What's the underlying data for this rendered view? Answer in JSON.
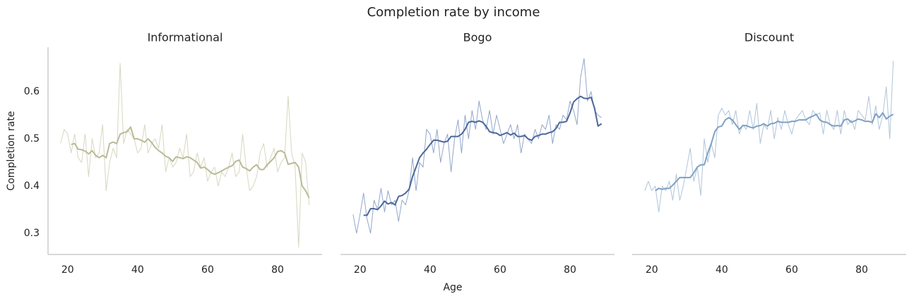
{
  "figure": {
    "title": "Completion rate by income",
    "x_label": "Age",
    "y_label": "Completion rate"
  },
  "chart_data": [
    {
      "type": "line",
      "title": "Informational",
      "x": [
        18,
        19,
        20,
        21,
        22,
        23,
        24,
        25,
        26,
        27,
        28,
        29,
        30,
        31,
        32,
        33,
        34,
        35,
        36,
        37,
        38,
        39,
        40,
        41,
        42,
        43,
        44,
        45,
        46,
        47,
        48,
        49,
        50,
        51,
        52,
        53,
        54,
        55,
        56,
        57,
        58,
        59,
        60,
        61,
        62,
        63,
        64,
        65,
        66,
        67,
        68,
        69,
        70,
        71,
        72,
        73,
        74,
        75,
        76,
        77,
        78,
        79,
        80,
        81,
        82,
        83,
        84,
        85,
        86,
        87,
        88,
        89
      ],
      "xlim": [
        14.4,
        92.7
      ],
      "ylim": [
        0.255,
        0.694
      ],
      "xticks": [
        20,
        40,
        60,
        80
      ],
      "yticks": [
        0.3,
        0.4,
        0.5,
        0.6
      ],
      "spines": [
        "left",
        "bottom"
      ],
      "series": [
        {
          "color": "#d6d7bf",
          "linewidth": 1,
          "values": [
            0.49,
            0.52,
            0.51,
            0.47,
            0.51,
            0.46,
            0.45,
            0.51,
            0.42,
            0.5,
            0.46,
            0.47,
            0.53,
            0.39,
            0.45,
            0.48,
            0.46,
            0.66,
            0.49,
            0.52,
            0.51,
            0.5,
            0.47,
            0.48,
            0.53,
            0.47,
            0.49,
            0.5,
            0.48,
            0.53,
            0.43,
            0.46,
            0.44,
            0.45,
            0.48,
            0.46,
            0.51,
            0.42,
            0.43,
            0.47,
            0.44,
            0.46,
            0.41,
            0.43,
            0.44,
            0.4,
            0.43,
            0.42,
            0.44,
            0.47,
            0.42,
            0.43,
            0.51,
            0.44,
            0.39,
            0.4,
            0.42,
            0.47,
            0.49,
            0.44,
            0.46,
            0.48,
            0.43,
            0.45,
            0.46,
            0.59,
            0.47,
            0.44,
            0.27,
            0.47,
            0.45,
            0.36
          ]
        },
        {
          "color": "#b9bb97",
          "linewidth": 2,
          "values": [
            null,
            null,
            null,
            0.488,
            0.49,
            0.478,
            0.477,
            0.474,
            0.468,
            0.475,
            0.465,
            0.46,
            0.465,
            0.46,
            0.49,
            0.493,
            0.49,
            0.51,
            0.513,
            0.515,
            0.525,
            0.5,
            0.5,
            0.497,
            0.493,
            0.5,
            0.492,
            0.482,
            0.475,
            0.47,
            0.463,
            0.46,
            0.452,
            0.462,
            0.46,
            0.458,
            0.462,
            0.46,
            0.455,
            0.45,
            0.438,
            0.44,
            0.435,
            0.428,
            0.425,
            0.428,
            0.432,
            0.436,
            0.44,
            0.443,
            0.452,
            0.455,
            0.44,
            0.437,
            0.432,
            0.44,
            0.445,
            0.435,
            0.435,
            0.445,
            0.452,
            0.46,
            0.473,
            0.475,
            0.47,
            0.446,
            0.448,
            0.45,
            0.44,
            0.4,
            0.39,
            0.375
          ]
        }
      ]
    },
    {
      "type": "line",
      "title": "Bogo",
      "x": [
        18,
        19,
        20,
        21,
        22,
        23,
        24,
        25,
        26,
        27,
        28,
        29,
        30,
        31,
        32,
        33,
        34,
        35,
        36,
        37,
        38,
        39,
        40,
        41,
        42,
        43,
        44,
        45,
        46,
        47,
        48,
        49,
        50,
        51,
        52,
        53,
        54,
        55,
        56,
        57,
        58,
        59,
        60,
        61,
        62,
        63,
        64,
        65,
        66,
        67,
        68,
        69,
        70,
        71,
        72,
        73,
        74,
        75,
        76,
        77,
        78,
        79,
        80,
        81,
        82,
        83,
        84,
        85,
        86,
        87,
        88,
        89
      ],
      "xlim": [
        14.4,
        92.7
      ],
      "ylim": [
        0.255,
        0.694
      ],
      "xticks": [
        20,
        40,
        60,
        80
      ],
      "spines": [
        "bottom"
      ],
      "series": [
        {
          "color": "#93a6cb",
          "linewidth": 1,
          "values": [
            0.34,
            0.3,
            0.34,
            0.385,
            0.33,
            0.3,
            0.37,
            0.35,
            0.395,
            0.345,
            0.39,
            0.36,
            0.37,
            0.325,
            0.37,
            0.36,
            0.39,
            0.46,
            0.39,
            0.45,
            0.44,
            0.52,
            0.51,
            0.47,
            0.52,
            0.45,
            0.49,
            0.51,
            0.43,
            0.5,
            0.54,
            0.47,
            0.55,
            0.5,
            0.56,
            0.52,
            0.58,
            0.54,
            0.52,
            0.56,
            0.51,
            0.55,
            0.52,
            0.49,
            0.51,
            0.53,
            0.5,
            0.53,
            0.47,
            0.51,
            0.5,
            0.49,
            0.52,
            0.5,
            0.53,
            0.52,
            0.55,
            0.49,
            0.53,
            0.52,
            0.55,
            0.54,
            0.58,
            0.56,
            0.53,
            0.63,
            0.67,
            0.58,
            0.6,
            0.56,
            0.55,
            0.545
          ]
        },
        {
          "color": "#4b6898",
          "linewidth": 2,
          "values": [
            null,
            null,
            null,
            0.338,
            0.338,
            0.352,
            0.352,
            0.35,
            0.358,
            0.368,
            0.362,
            0.365,
            0.36,
            0.378,
            0.38,
            0.385,
            0.393,
            0.42,
            0.44,
            0.46,
            0.47,
            0.478,
            0.488,
            0.497,
            0.497,
            0.495,
            0.493,
            0.495,
            0.505,
            0.505,
            0.505,
            0.51,
            0.52,
            0.535,
            0.537,
            0.535,
            0.538,
            0.535,
            0.527,
            0.515,
            0.513,
            0.512,
            0.507,
            0.51,
            0.513,
            0.508,
            0.512,
            0.505,
            0.505,
            0.507,
            0.5,
            0.497,
            0.505,
            0.507,
            0.51,
            0.51,
            0.513,
            0.515,
            0.522,
            0.535,
            0.535,
            0.537,
            0.555,
            0.578,
            0.585,
            0.59,
            0.586,
            0.585,
            0.588,
            0.565,
            0.527,
            0.532
          ]
        }
      ]
    },
    {
      "type": "line",
      "title": "Discount",
      "x": [
        18,
        19,
        20,
        21,
        22,
        23,
        24,
        25,
        26,
        27,
        28,
        29,
        30,
        31,
        32,
        33,
        34,
        35,
        36,
        37,
        38,
        39,
        40,
        41,
        42,
        43,
        44,
        45,
        46,
        47,
        48,
        49,
        50,
        51,
        52,
        53,
        54,
        55,
        56,
        57,
        58,
        59,
        60,
        61,
        62,
        63,
        64,
        65,
        66,
        67,
        68,
        69,
        70,
        71,
        72,
        73,
        74,
        75,
        76,
        77,
        78,
        79,
        80,
        81,
        82,
        83,
        84,
        85,
        86,
        87,
        88,
        89
      ],
      "xlim": [
        14.4,
        92.7
      ],
      "ylim": [
        0.255,
        0.694
      ],
      "xticks": [
        20,
        40,
        60,
        80
      ],
      "spines": [
        "bottom"
      ],
      "series": [
        {
          "color": "#b0c4da",
          "linewidth": 1,
          "values": [
            0.39,
            0.41,
            0.39,
            0.4,
            0.345,
            0.4,
            0.39,
            0.41,
            0.37,
            0.425,
            0.37,
            0.4,
            0.44,
            0.48,
            0.41,
            0.44,
            0.38,
            0.5,
            0.45,
            0.49,
            0.46,
            0.55,
            0.565,
            0.55,
            0.56,
            0.53,
            0.56,
            0.51,
            0.53,
            0.52,
            0.56,
            0.52,
            0.575,
            0.49,
            0.53,
            0.52,
            0.56,
            0.5,
            0.545,
            0.52,
            0.56,
            0.53,
            0.51,
            0.54,
            0.55,
            0.56,
            0.54,
            0.53,
            0.56,
            0.55,
            0.555,
            0.51,
            0.56,
            0.53,
            0.52,
            0.56,
            0.51,
            0.56,
            0.53,
            0.54,
            0.52,
            0.56,
            0.55,
            0.54,
            0.59,
            0.53,
            0.57,
            0.52,
            0.55,
            0.61,
            0.5,
            0.665
          ]
        },
        {
          "color": "#7fa1c3",
          "linewidth": 2,
          "values": [
            null,
            null,
            null,
            0.39,
            0.395,
            0.393,
            0.395,
            0.395,
            0.402,
            0.41,
            0.418,
            0.418,
            0.418,
            0.418,
            0.428,
            0.44,
            0.445,
            0.445,
            0.47,
            0.49,
            0.515,
            0.525,
            0.527,
            0.54,
            0.545,
            0.54,
            0.53,
            0.52,
            0.528,
            0.528,
            0.525,
            0.523,
            0.527,
            0.528,
            0.532,
            0.527,
            0.532,
            0.533,
            0.537,
            0.535,
            0.535,
            0.535,
            0.537,
            0.537,
            0.54,
            0.54,
            0.54,
            0.545,
            0.548,
            0.552,
            0.54,
            0.536,
            0.535,
            0.53,
            0.527,
            0.528,
            0.527,
            0.54,
            0.542,
            0.535,
            0.538,
            0.542,
            0.54,
            0.537,
            0.537,
            0.535,
            0.553,
            0.545,
            0.555,
            0.542,
            0.548,
            0.552
          ]
        }
      ]
    }
  ]
}
